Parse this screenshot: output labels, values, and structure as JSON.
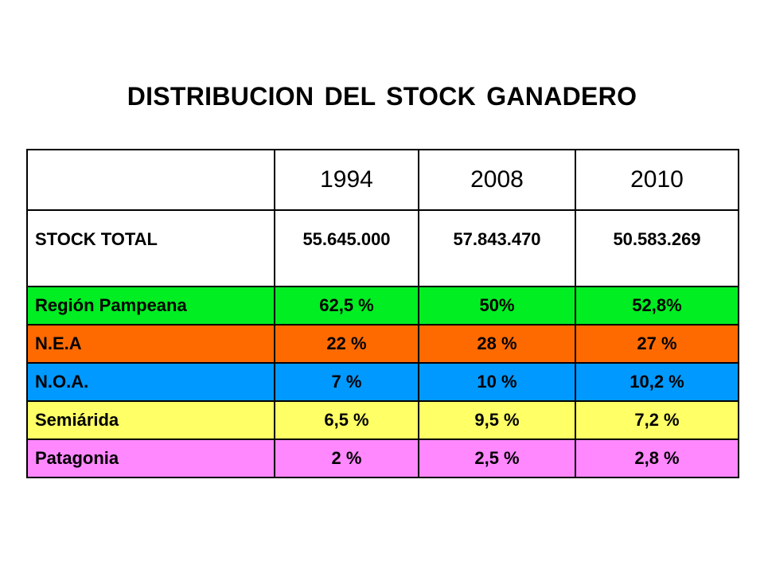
{
  "title": "DISTRIBUCION DEL STOCK GANADERO",
  "table": {
    "years": [
      "1994",
      "2008",
      "2010"
    ],
    "total": {
      "label": "STOCK TOTAL",
      "values": [
        "55.645.000",
        "57.843.470",
        "50.583.269"
      ]
    },
    "regions": [
      {
        "name": "Región Pampeana",
        "values": [
          "62,5 %",
          "50%",
          "52,8%"
        ],
        "color": "#00ee22"
      },
      {
        "name": "N.E.A",
        "values": [
          "22 %",
          "28 %",
          "27 %"
        ],
        "color": "#ff6a00"
      },
      {
        "name": "N.O.A.",
        "values": [
          "7 %",
          "10 %",
          "10,2 %"
        ],
        "color": "#0099ff"
      },
      {
        "name": "Semiárida",
        "values": [
          "6,5 %",
          "9,5 %",
          "7,2 %"
        ],
        "color": "#ffff66"
      },
      {
        "name": "Patagonia",
        "values": [
          "2 %",
          "2,5 %",
          "2,8 %"
        ],
        "color": "#ff88ff"
      }
    ]
  }
}
